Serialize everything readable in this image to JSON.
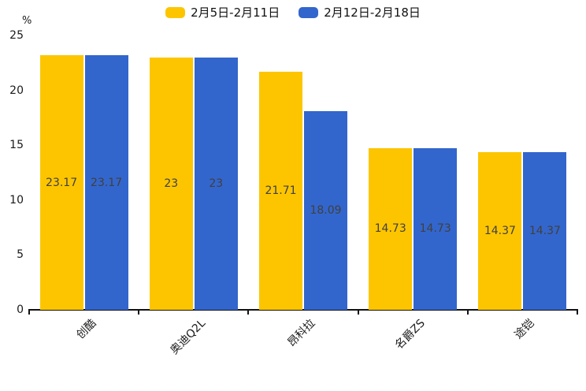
{
  "chart_data": {
    "type": "bar",
    "title": "",
    "unit_label": "%",
    "categories": [
      "创酷",
      "奥迪Q2L",
      "昂科拉",
      "名爵ZS",
      "途铠"
    ],
    "series": [
      {
        "name": "2月5日-2月11日",
        "color": "#FDC500",
        "values": [
          23.17,
          23,
          21.71,
          14.73,
          14.37
        ]
      },
      {
        "name": "2月12日-2月18日",
        "color": "#3366CC",
        "values": [
          23.17,
          23,
          18.09,
          14.73,
          14.37
        ]
      }
    ],
    "value_labels": {
      "series0": [
        "23.17",
        "23",
        "21.71",
        "14.73",
        "14.37"
      ],
      "series1": [
        "23.17",
        "23",
        "18.09",
        "14.73",
        "14.37"
      ]
    },
    "ylim": [
      0,
      25
    ],
    "yticks": [
      0,
      5,
      10,
      15,
      20,
      25
    ],
    "grid": false,
    "legend_position": "top",
    "value_label_position": "inside-center",
    "colors": {
      "series0": "#FDC500",
      "series1": "#3366CC",
      "axis": "#111111",
      "text": "#1a1a1a",
      "bar_label_text": "#404040",
      "background": "#ffffff"
    }
  }
}
